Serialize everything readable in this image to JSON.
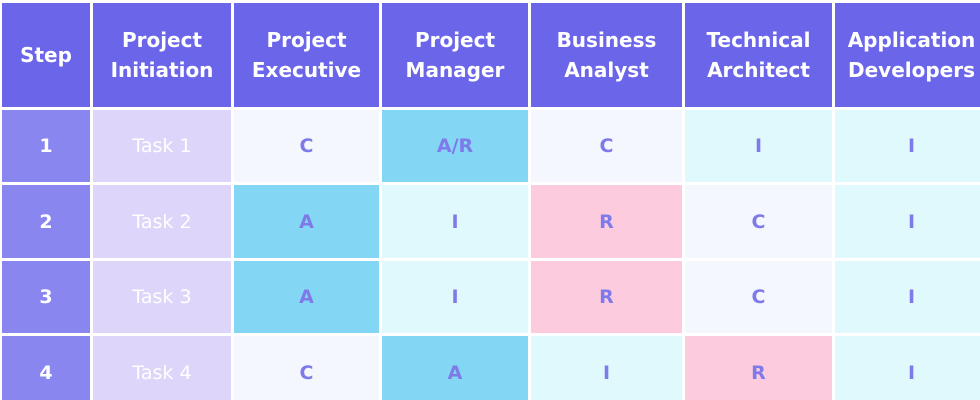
{
  "colors": {
    "header": "#6b66e9",
    "step": "#8a86ef",
    "task": "#ddd6fa",
    "value_text": "#7e7ae9",
    "shades": {
      "white": "#f4f7fd",
      "light": "#e0f9fc",
      "blue": "#84d6f5",
      "pink": "#fdcbde"
    }
  },
  "headers": [
    "Step",
    "Project\nInitiation",
    "Project\nExecutive",
    "Project\nManager",
    "Business\nAnalyst",
    "Technical\nArchitect",
    "Application\nDevelopers"
  ],
  "rows": [
    {
      "step": "1",
      "task": "Task 1",
      "values": [
        "C",
        "A/R",
        "C",
        "I",
        "I"
      ],
      "shades": [
        "white",
        "blue",
        "white",
        "light",
        "light"
      ]
    },
    {
      "step": "2",
      "task": "Task 2",
      "values": [
        "A",
        "I",
        "R",
        "C",
        "I"
      ],
      "shades": [
        "blue",
        "light",
        "pink",
        "white",
        "light"
      ]
    },
    {
      "step": "3",
      "task": "Task 3",
      "values": [
        "A",
        "I",
        "R",
        "C",
        "I"
      ],
      "shades": [
        "blue",
        "light",
        "pink",
        "white",
        "light"
      ]
    },
    {
      "step": "4",
      "task": "Task 4",
      "values": [
        "C",
        "A",
        "I",
        "R",
        "I"
      ],
      "shades": [
        "white",
        "blue",
        "light",
        "pink",
        "light"
      ]
    }
  ]
}
